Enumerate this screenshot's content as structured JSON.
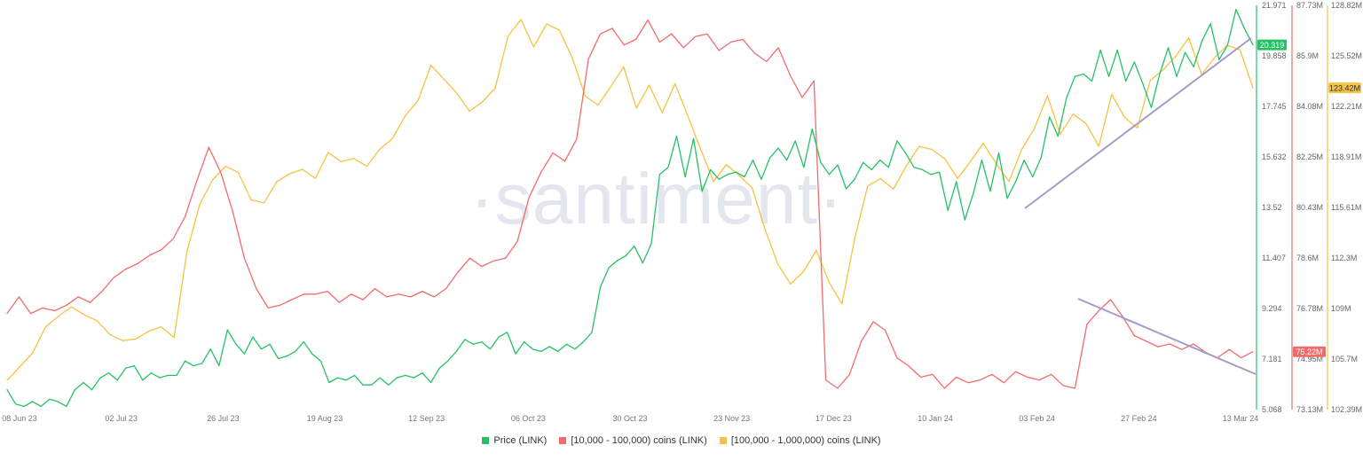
{
  "chart_data": {
    "type": "line",
    "watermark": "·santiment·",
    "x_labels": [
      "08 Jun 23",
      "02 Jul 23",
      "26 Jul 23",
      "19 Aug 23",
      "12 Sep 23",
      "06 Oct 23",
      "30 Oct 23",
      "23 Nov 23",
      "17 Dec 23",
      "10 Jan 24",
      "03 Feb 24",
      "27 Feb 24",
      "13 Mar 24"
    ],
    "axes": {
      "price": {
        "ticks": [
          "21.971",
          "19.858",
          "17.745",
          "15.632",
          "13.52",
          "11.407",
          "9.294",
          "7.181",
          "5.068"
        ],
        "color": "#26c164",
        "range": [
          5.068,
          21.971
        ]
      },
      "mid": {
        "ticks": [
          "87.73M",
          "85.9M",
          "84.08M",
          "82.25M",
          "80.43M",
          "78.6M",
          "76.78M",
          "74.95M",
          "73.13M"
        ],
        "color": "#f26b6b",
        "range": [
          73.13,
          87.73
        ]
      },
      "whale": {
        "ticks": [
          "128.82M",
          "125.52M",
          "122.21M",
          "118.91M",
          "115.61M",
          "112.3M",
          "109M",
          "105.7M",
          "102.39M"
        ],
        "color": "#f5c242",
        "range": [
          102.39,
          128.82
        ]
      }
    },
    "last_value_badges": {
      "price": "20.319",
      "mid": "75.22M",
      "whale": "123.42M"
    },
    "series": [
      {
        "name": "Price (LINK)",
        "color": "#26c164",
        "axis": "price",
        "values": [
          5.9,
          5.3,
          5.2,
          5.4,
          5.2,
          5.5,
          5.4,
          5.2,
          5.9,
          6.2,
          5.9,
          6.4,
          6.6,
          6.3,
          6.8,
          6.9,
          6.3,
          6.6,
          6.4,
          6.5,
          6.5,
          7.1,
          6.9,
          7.0,
          7.6,
          6.9,
          8.4,
          7.8,
          7.4,
          8.1,
          7.6,
          7.8,
          7.2,
          7.3,
          7.5,
          7.9,
          7.4,
          7.1,
          6.2,
          6.4,
          6.3,
          6.5,
          6.1,
          6.1,
          6.4,
          6.1,
          6.4,
          6.5,
          6.4,
          6.6,
          6.2,
          6.8,
          7.1,
          7.5,
          8.0,
          7.8,
          7.9,
          7.6,
          8.1,
          8.3,
          7.4,
          7.9,
          7.6,
          7.5,
          7.7,
          7.5,
          7.8,
          7.6,
          7.9,
          8.3,
          10.2,
          11.0,
          11.3,
          11.5,
          11.9,
          11.2,
          12.0,
          14.9,
          15.2,
          16.5,
          14.8,
          16.4,
          14.2,
          15.1,
          14.7,
          14.9,
          15.0,
          14.8,
          15.5,
          14.7,
          15.6,
          16.0,
          15.5,
          16.3,
          15.2,
          16.8,
          15.4,
          14.9,
          15.3,
          14.3,
          14.7,
          15.4,
          15.1,
          15.5,
          15.2,
          16.3,
          15.8,
          15.2,
          15.1,
          14.9,
          15.0,
          13.4,
          14.6,
          13.0,
          14.1,
          15.5,
          14.2,
          15.8,
          13.9,
          14.6,
          15.5,
          14.8,
          15.6,
          17.3,
          16.5,
          18.1,
          19.0,
          19.1,
          18.8,
          20.1,
          19.0,
          20.1,
          18.8,
          19.6,
          18.7,
          17.7,
          19.1,
          20.2,
          19.0,
          20.0,
          19.4,
          20.5,
          21.2,
          19.7,
          20.3,
          21.8,
          21.0,
          20.319
        ]
      },
      {
        "name": "[10,000 - 100,000) coins (LINK)",
        "color": "#f26b6b",
        "axis": "mid",
        "values": [
          76.6,
          77.2,
          76.6,
          76.8,
          76.7,
          76.9,
          77.2,
          77.0,
          77.4,
          77.9,
          78.2,
          78.4,
          78.7,
          78.9,
          79.3,
          80.1,
          81.4,
          82.6,
          81.7,
          80.3,
          78.6,
          77.5,
          76.8,
          76.9,
          77.1,
          77.3,
          77.3,
          77.4,
          77.0,
          77.3,
          77.1,
          77.5,
          77.2,
          77.3,
          77.2,
          77.4,
          77.2,
          77.5,
          78.1,
          78.6,
          78.3,
          78.5,
          78.6,
          79.2,
          80.8,
          81.7,
          82.4,
          82.1,
          82.9,
          85.8,
          86.7,
          86.9,
          86.3,
          86.5,
          87.2,
          86.4,
          86.7,
          86.2,
          86.6,
          86.7,
          86.1,
          86.4,
          86.5,
          86.0,
          85.7,
          86.2,
          85.2,
          84.4,
          85.0,
          74.2,
          73.9,
          74.4,
          75.6,
          76.3,
          76.0,
          75.0,
          74.7,
          74.3,
          74.4,
          73.9,
          74.3,
          74.1,
          74.2,
          74.4,
          74.1,
          74.5,
          74.3,
          74.2,
          74.4,
          74.0,
          73.9,
          76.2,
          76.7,
          77.1,
          76.5,
          75.8,
          75.6,
          75.4,
          75.5,
          75.3,
          75.5,
          75.2,
          75.0,
          75.3,
          75.0,
          75.22
        ]
      },
      {
        "name": "[100,000  - 1,000,000) coins (LINK)",
        "color": "#f5c242",
        "axis": "whale",
        "values": [
          104.3,
          105.2,
          106.1,
          107.8,
          108.5,
          109.1,
          108.6,
          108.2,
          107.3,
          106.9,
          107.0,
          107.5,
          107.8,
          107.1,
          112.7,
          115.8,
          117.4,
          118.3,
          117.9,
          116.1,
          115.9,
          117.3,
          117.8,
          118.1,
          117.5,
          119.2,
          118.6,
          118.8,
          118.3,
          119.4,
          120.1,
          121.6,
          122.6,
          124.9,
          124.0,
          123.1,
          121.9,
          122.5,
          123.4,
          126.8,
          127.9,
          126.1,
          127.6,
          127.2,
          125.4,
          122.9,
          122.3,
          123.5,
          124.8,
          122.1,
          123.6,
          121.8,
          123.7,
          121.6,
          119.4,
          117.3,
          118.4,
          117.7,
          116.9,
          114.2,
          111.9,
          110.6,
          111.4,
          112.8,
          110.7,
          109.3,
          113.6,
          117.0,
          117.5,
          116.8,
          118.3,
          119.6,
          119.4,
          118.8,
          117.5,
          118.6,
          119.8,
          118.5,
          117.3,
          119.4,
          120.8,
          122.9,
          120.4,
          121.7,
          121.1,
          119.6,
          123.0,
          121.5,
          120.8,
          123.9,
          124.6,
          125.5,
          126.7,
          124.3,
          125.4,
          126.2,
          125.9,
          123.42
        ]
      }
    ],
    "trendlines": [
      "price-rising",
      "mid-falling"
    ],
    "legend": {
      "placement": "bottom-center"
    }
  }
}
